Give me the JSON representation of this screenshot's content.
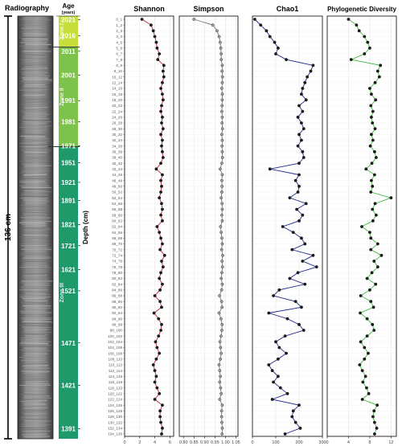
{
  "core": {
    "title": "Radiography",
    "length_label": "136 cm"
  },
  "age": {
    "title": "Age",
    "unit": "(years)",
    "ticks": [
      2021,
      2016,
      2011,
      2001,
      1991,
      1981,
      1971,
      1951,
      1921,
      1891,
      1821,
      1721,
      1621,
      1521,
      1471,
      1421,
      1391
    ],
    "zones": [
      {
        "label": "Zone I",
        "color": "#c6de3a",
        "from_depth": 0,
        "to_depth": 10
      },
      {
        "label": "Zone II",
        "color": "#7dc24a",
        "from_depth": 10,
        "to_depth": 42
      },
      {
        "label": "Zone III",
        "color": "#1e9a6a",
        "from_depth": 42,
        "to_depth": 136
      }
    ],
    "zone_boundary_color": "#333333"
  },
  "depth_axis_label": "Depth (cm)",
  "chart_data": [
    {
      "type": "line",
      "title": "Shannon",
      "color": "#c8202c",
      "xlim": [
        0,
        6.5
      ],
      "xticks": [
        0,
        2,
        4,
        6
      ],
      "categories": [
        "0_1",
        "1_2",
        "2_3",
        "3_4",
        "4_5",
        "5_6",
        "6_7",
        "7_8",
        "8_9",
        "9_10",
        "10_12",
        "12_14",
        "14_16",
        "16_18",
        "18_20",
        "20_22",
        "22_24",
        "24_26",
        "26_28",
        "28_30",
        "30_32",
        "32_34",
        "34_36",
        "36_38",
        "38_40",
        "40_42",
        "42_44",
        "44_46",
        "46_48",
        "48_50",
        "50_52",
        "52_54",
        "54_56",
        "56_58",
        "58_60",
        "60_62",
        "62_64",
        "64_66",
        "66_68",
        "68_70",
        "70_72",
        "72_74",
        "74_76",
        "76_78",
        "78_80",
        "80_82",
        "82_84",
        "84_86",
        "86_88",
        "88_90",
        "90_92",
        "92_94",
        "94_96",
        "96_98",
        "98_100",
        "100_102",
        "102_104",
        "104_106",
        "106_108",
        "108_110",
        "110_112",
        "112_114",
        "114_116",
        "116_118",
        "118_120",
        "120_122",
        "122_124",
        "124_126",
        "126_128",
        "128_130",
        "130_132",
        "132_134",
        "134_136"
      ],
      "values": [
        2.3,
        3.5,
        3.8,
        4.0,
        4.2,
        4.3,
        4.6,
        4.4,
        5.2,
        5.1,
        5.2,
        5.0,
        4.8,
        5.0,
        5.1,
        4.9,
        4.8,
        5.0,
        4.9,
        5.1,
        4.8,
        5.0,
        4.9,
        5.0,
        5.1,
        4.8,
        4.2,
        5.0,
        4.8,
        4.9,
        4.8,
        4.6,
        4.9,
        5.0,
        4.8,
        5.0,
        4.3,
        4.6,
        4.8,
        5.0,
        4.7,
        5.3,
        4.9,
        5.1,
        4.8,
        4.6,
        5.0,
        4.7,
        4.0,
        4.7,
        4.9,
        3.9,
        4.5,
        4.9,
        4.8,
        4.5,
        4.1,
        4.3,
        4.6,
        4.2,
        3.8,
        4.0,
        4.2,
        4.0,
        4.3,
        4.6,
        4.0,
        5.0,
        4.7,
        4.7,
        4.8,
        5.0,
        4.9
      ]
    },
    {
      "type": "line",
      "title": "Simpson",
      "color": "#777777",
      "xlim": [
        0.78,
        1.06
      ],
      "xticks": [
        0.8,
        0.85,
        0.9,
        0.95,
        1.0,
        1.05
      ],
      "values": [
        0.85,
        0.94,
        0.96,
        0.97,
        0.975,
        0.978,
        0.98,
        0.98,
        0.985,
        0.984,
        0.986,
        0.985,
        0.983,
        0.985,
        0.985,
        0.984,
        0.983,
        0.985,
        0.984,
        0.986,
        0.983,
        0.985,
        0.984,
        0.985,
        0.986,
        0.983,
        0.975,
        0.985,
        0.983,
        0.984,
        0.983,
        0.98,
        0.984,
        0.985,
        0.983,
        0.985,
        0.977,
        0.98,
        0.983,
        0.985,
        0.982,
        0.987,
        0.984,
        0.986,
        0.983,
        0.98,
        0.985,
        0.982,
        0.972,
        0.982,
        0.984,
        0.97,
        0.979,
        0.984,
        0.983,
        0.979,
        0.974,
        0.977,
        0.98,
        0.976,
        0.97,
        0.973,
        0.976,
        0.973,
        0.977,
        0.98,
        0.973,
        0.985,
        0.982,
        0.982,
        0.983,
        0.985,
        0.984
      ]
    },
    {
      "type": "line",
      "title": "Chao1",
      "color": "#1e2a8c",
      "xlim": [
        0,
        300
      ],
      "xticks": [
        0,
        100,
        200,
        300
      ],
      "values": [
        10,
        35,
        60,
        75,
        95,
        110,
        100,
        145,
        260,
        250,
        235,
        225,
        215,
        210,
        230,
        200,
        215,
        195,
        210,
        220,
        200,
        210,
        195,
        215,
        220,
        200,
        75,
        200,
        185,
        200,
        195,
        160,
        230,
        190,
        215,
        200,
        130,
        175,
        210,
        225,
        170,
        260,
        215,
        275,
        195,
        160,
        225,
        115,
        90,
        185,
        210,
        70,
        150,
        200,
        220,
        140,
        100,
        115,
        145,
        110,
        70,
        85,
        110,
        90,
        120,
        150,
        85,
        200,
        175,
        170,
        185,
        205,
        140
      ]
    },
    {
      "type": "line",
      "title": "Phylogenetic Diversity",
      "color": "#3cb83c",
      "xlim": [
        0,
        13
      ],
      "xticks": [
        0,
        4,
        8,
        12
      ],
      "values": [
        4,
        5.5,
        6,
        7,
        7.6,
        8,
        7,
        4.5,
        10,
        9.5,
        9.8,
        9,
        8,
        8.3,
        9.1,
        8.2,
        8.6,
        8.3,
        8.5,
        9,
        8.3,
        8.6,
        8.1,
        8.9,
        9.2,
        8.4,
        7.3,
        8.9,
        8.3,
        8.5,
        8.2,
        12,
        9,
        8.5,
        9.2,
        8.6,
        6.5,
        8,
        8.2,
        9.5,
        8.2,
        10.2,
        8.8,
        9.5,
        8.4,
        7.5,
        9.1,
        8,
        6.3,
        8.2,
        8.7,
        6.2,
        7.5,
        8.5,
        8.8,
        7.5,
        6.3,
        7,
        7.7,
        7,
        6.1,
        6.6,
        7.2,
        6.7,
        7.4,
        7.8,
        6.6,
        9.4,
        8.8,
        8.6,
        8.9,
        9.3,
        8.9
      ]
    }
  ]
}
